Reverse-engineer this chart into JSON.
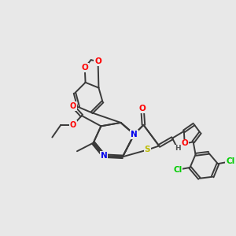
{
  "bg_color": "#e8e8e8",
  "bond_color": "#3a3a3a",
  "bond_width": 1.4,
  "atom_colors": {
    "O": "#ff0000",
    "N": "#0000ee",
    "S": "#bbbb00",
    "Cl": "#00cc00",
    "H": "#555555",
    "C": "#3a3a3a"
  },
  "figsize": [
    3.0,
    3.0
  ],
  "dpi": 100
}
